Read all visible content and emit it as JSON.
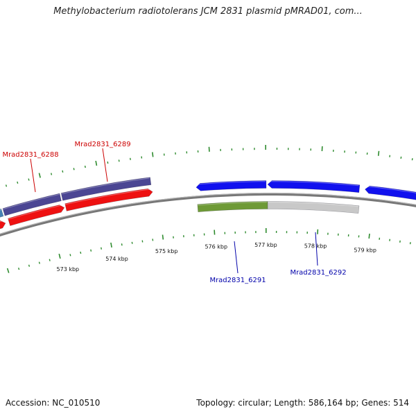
{
  "header": {
    "title": "Methylobacterium radiotolerans JCM 2831 plasmid pMRAD01, com..."
  },
  "footer": {
    "accession": "Accession: NC_010510",
    "summary": "Topology: circular; Length: 586,164 bp; Genes: 514"
  },
  "colors": {
    "backbone": "#777777",
    "tick": "#2e8b2e",
    "red_genes": "#ee1111",
    "red_labels": "#cc0000",
    "blue_genes": "#1111ee",
    "blue_labels": "#0000aa",
    "purple_genes": "#4b4693",
    "olive_gene": "#6e9a36",
    "gray_gene": "#c8c8c8",
    "steelblue_gene": "#4682b4"
  },
  "ruler": {
    "kbp_labels": [
      "573 kbp",
      "574 kbp",
      "575 kbp",
      "576 kbp",
      "577 kbp",
      "578 kbp",
      "579 kbp"
    ]
  },
  "genes": {
    "labels": [
      {
        "text": "Mrad2831_6288",
        "color_key": "red_labels"
      },
      {
        "text": "Mrad2831_6289",
        "color_key": "red_labels"
      },
      {
        "text": "Mrad2831_6291",
        "color_key": "blue_labels"
      },
      {
        "text": "Mrad2831_6292",
        "color_key": "blue_labels"
      }
    ]
  }
}
